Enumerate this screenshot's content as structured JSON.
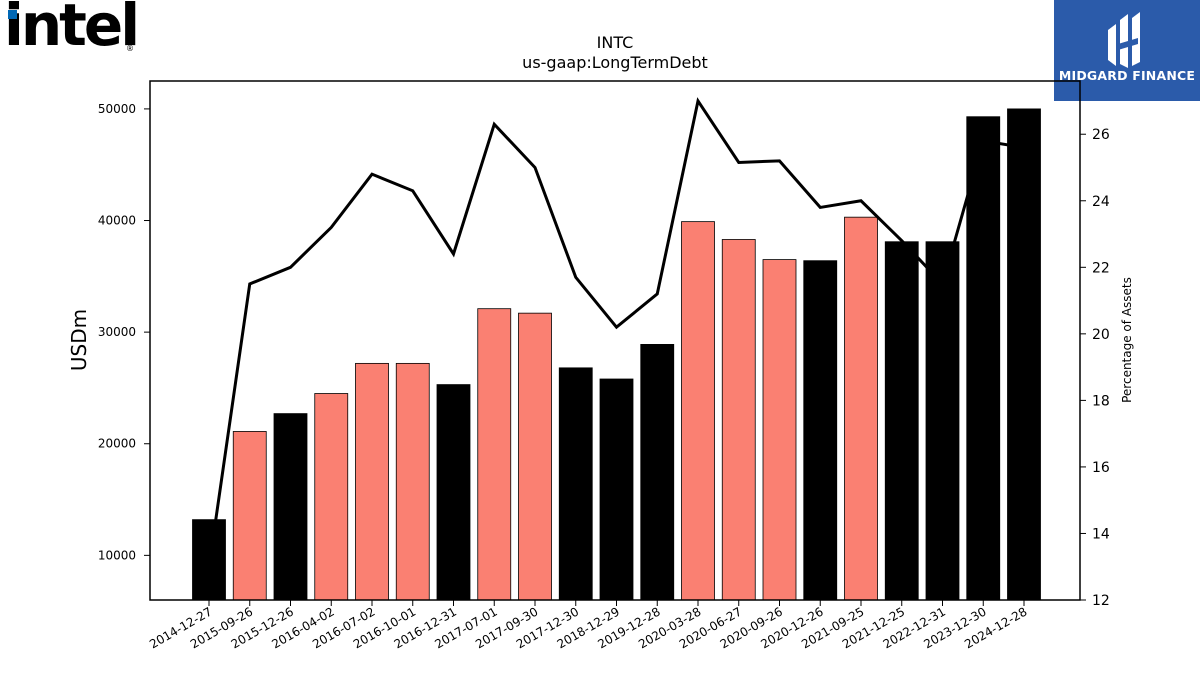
{
  "logos": {
    "intel": "intel",
    "midgard": "MIDGARD FINANCE"
  },
  "colors": {
    "bar_black": "#000000",
    "bar_salmon": "#fa8072",
    "line": "#000000",
    "badge_bg": "#2b5baa",
    "intel_blue": "#0068b5"
  },
  "chart_data": {
    "type": "bar",
    "title": "INTC",
    "subtitle": "us-gaap:LongTermDebt",
    "ylabel": "USDm",
    "y2label": "Percentage of Assets",
    "ylim": [
      6000,
      52500
    ],
    "y2lim": [
      12,
      27.6
    ],
    "yticks": [
      10000,
      20000,
      30000,
      40000,
      50000
    ],
    "y2ticks": [
      12,
      14,
      16,
      18,
      20,
      22,
      24,
      26
    ],
    "categories": [
      "2014-12-27",
      "2015-09-26",
      "2015-12-26",
      "2016-04-02",
      "2016-07-02",
      "2016-10-01",
      "2016-12-31",
      "2017-07-01",
      "2017-09-30",
      "2017-12-30",
      "2018-12-29",
      "2019-12-28",
      "2020-03-28",
      "2020-06-27",
      "2020-09-26",
      "2020-12-26",
      "2021-09-25",
      "2021-12-25",
      "2022-12-31",
      "2023-12-30",
      "2024-12-28"
    ],
    "series": [
      {
        "values": [
          13200,
          21100,
          22700,
          24500,
          27200,
          27200,
          25300,
          32100,
          31700,
          26800,
          25800,
          28900,
          39900,
          38300,
          36500,
          36400,
          40300,
          38100,
          38100,
          49300,
          50000
        ],
        "bar_colors": [
          "black",
          "salmon",
          "black",
          "salmon",
          "salmon",
          "salmon",
          "black",
          "salmon",
          "salmon",
          "black",
          "black",
          "black",
          "salmon",
          "salmon",
          "salmon",
          "black",
          "salmon",
          "black",
          "black",
          "black",
          "black"
        ]
      },
      {
        "values": [
          13.0,
          21.5,
          22.0,
          23.2,
          24.8,
          24.3,
          22.4,
          26.3,
          25.0,
          21.7,
          20.2,
          21.2,
          27.0,
          25.15,
          25.2,
          23.8,
          24.0,
          22.8,
          21.5,
          25.8,
          25.6
        ]
      }
    ]
  }
}
